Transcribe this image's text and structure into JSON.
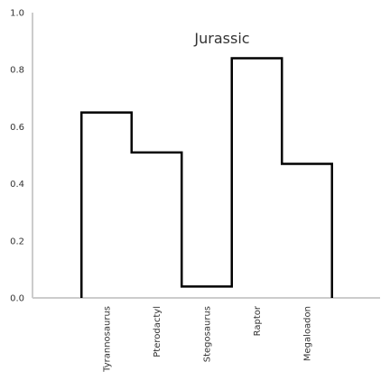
{
  "chart_data": {
    "type": "line",
    "step": "mid",
    "title": "Jurassic",
    "title_placement": "top-center",
    "categories": [
      "Tyrannosaurus",
      "Pterodactyl",
      "Stegosaurus",
      "Raptor",
      "Megaloadon"
    ],
    "values": [
      0.65,
      0.51,
      0.04,
      0.84,
      0.47
    ],
    "xlabel": "",
    "ylabel": "",
    "ylim": [
      0,
      1
    ],
    "yticks": [
      0.0,
      0.2,
      0.4,
      0.6,
      0.8,
      1.0
    ],
    "ytick_labels": [
      "0.0",
      "0.2",
      "0.4",
      "0.6",
      "0.8",
      "1.0"
    ],
    "grid": false,
    "legend": "none",
    "line_color": "#000000",
    "axis_color": "#cccccc",
    "text_color": "#333333"
  }
}
